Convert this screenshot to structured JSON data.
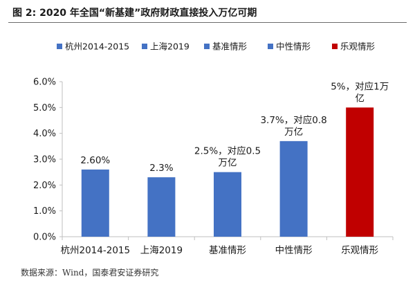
{
  "title": "图 2: 2020 年全国“新基建”政府财政直接投入万亿可期",
  "source": "数据来源：Wind，国泰君安证券研究",
  "colors": {
    "blue": "#4472C4",
    "red": "#C00000",
    "axis": "#bfbfbf",
    "text": "#1a1a1a"
  },
  "chart_data": {
    "type": "bar",
    "categories": [
      "杭州2014-2015",
      "上海2019",
      "基准情形",
      "中性情形",
      "乐观情形"
    ],
    "values": [
      2.6,
      2.3,
      2.5,
      3.7,
      5.0
    ],
    "data_labels": [
      [
        "2.60%"
      ],
      [
        "2.3%"
      ],
      [
        "2.5%，对应0.5",
        "万亿"
      ],
      [
        "3.7%，对应0.8",
        "万亿"
      ],
      [
        "5%，对应1万",
        "亿"
      ]
    ],
    "legend": [
      "杭州2014-2015",
      "上海2019",
      "基准情形",
      "中性情形",
      "乐观情形"
    ],
    "legend_placement": "top",
    "bar_colors": [
      "#4472C4",
      "#4472C4",
      "#4472C4",
      "#4472C4",
      "#C00000"
    ],
    "ylim": [
      0,
      6
    ],
    "yticks": [
      "0.0%",
      "1.0%",
      "2.0%",
      "3.0%",
      "4.0%",
      "5.0%",
      "6.0%"
    ],
    "xlabel": "",
    "ylabel": "",
    "grid": false
  }
}
